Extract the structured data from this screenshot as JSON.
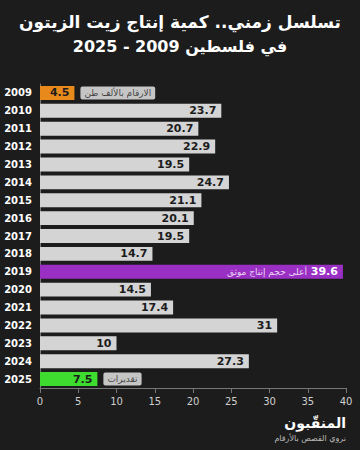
{
  "chart_data": {
    "type": "bar",
    "orientation": "horizontal",
    "title": "تسلسل زمني.. كمية إنتاج زيت الزيتون",
    "subtitle": "في فلسطين 2009 - 2025",
    "categories": [
      "2009",
      "2010",
      "2011",
      "2012",
      "2013",
      "2014",
      "2015",
      "2016",
      "2017",
      "2018",
      "2019",
      "2020",
      "2021",
      "2022",
      "2023",
      "2024",
      "2025"
    ],
    "values": [
      4.5,
      23.7,
      20.7,
      22.9,
      19.5,
      24.7,
      21.1,
      20.1,
      19.5,
      14.7,
      39.6,
      14.5,
      17.4,
      31,
      10,
      27.3,
      7.5
    ],
    "colors": [
      "#e8891c",
      "#d4d4d4",
      "#d4d4d4",
      "#d4d4d4",
      "#d4d4d4",
      "#d4d4d4",
      "#d4d4d4",
      "#d4d4d4",
      "#d4d4d4",
      "#d4d4d4",
      "#9a2fc4",
      "#d4d4d4",
      "#d4d4d4",
      "#d4d4d4",
      "#d4d4d4",
      "#d4d4d4",
      "#3ddc2f"
    ],
    "data_labels": true,
    "xlim": [
      0,
      40
    ],
    "xticks": [
      0,
      5,
      10,
      15,
      20,
      25,
      30,
      35,
      40
    ],
    "grid": false,
    "annotations": [
      {
        "category": "2009",
        "text": "الارقام بالألف طن"
      },
      {
        "category": "2019",
        "text": "أعلى حجم إنتاج موثق"
      },
      {
        "category": "2025",
        "text": "تقديرات"
      }
    ],
    "footer": [
      "المنقّبون",
      "نروي القصص بالأرقام"
    ]
  }
}
